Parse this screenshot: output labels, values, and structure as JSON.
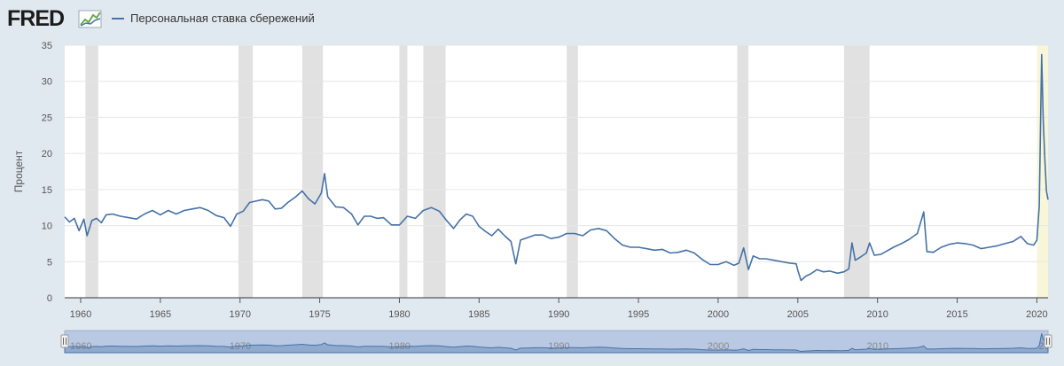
{
  "header": {
    "logo": "FRED",
    "logo_icon": "fred-chart-logo-icon",
    "legend_label": "Персональная ставка сбережений"
  },
  "colors": {
    "background": "#e1e9f0",
    "plot_bg": "#ffffff",
    "series": "#4572a7",
    "recession": "#e1e1e1",
    "highlight": "#f8f6d8",
    "navigator": "#b9c8e3"
  },
  "navigator": {
    "labels": [
      "1960",
      "1970",
      "1980",
      "1990",
      "2000",
      "2010",
      "20"
    ]
  },
  "chart_data": {
    "type": "line",
    "title": "",
    "ylabel": "Процент",
    "xlabel": "",
    "xlim": [
      1959.0,
      2020.7
    ],
    "ylim": [
      0,
      35
    ],
    "yticks": [
      0,
      5,
      10,
      15,
      20,
      25,
      30,
      35
    ],
    "xticks": [
      "1960",
      "1965",
      "1970",
      "1975",
      "1980",
      "1985",
      "1990",
      "1995",
      "2000",
      "2005",
      "2010",
      "2015",
      "2020"
    ],
    "grid": true,
    "legend_position": "top-left",
    "recessions": [
      [
        1960.3,
        1961.1
      ],
      [
        1969.9,
        1970.8
      ],
      [
        1973.9,
        1975.2
      ],
      [
        1980.0,
        1980.5
      ],
      [
        1981.5,
        1982.9
      ],
      [
        1990.5,
        1991.2
      ],
      [
        2001.2,
        2001.9
      ],
      [
        2007.9,
        2009.5
      ]
    ],
    "highlight": [
      2020.0,
      2020.7
    ],
    "series": [
      {
        "name": "Персональная ставка сбережений",
        "points": [
          [
            1959.0,
            11.2
          ],
          [
            1959.3,
            10.5
          ],
          [
            1959.6,
            11.0
          ],
          [
            1959.9,
            9.3
          ],
          [
            1960.2,
            10.9
          ],
          [
            1960.4,
            8.6
          ],
          [
            1960.7,
            10.7
          ],
          [
            1961.0,
            11.0
          ],
          [
            1961.3,
            10.4
          ],
          [
            1961.6,
            11.5
          ],
          [
            1962.0,
            11.6
          ],
          [
            1962.5,
            11.3
          ],
          [
            1963.0,
            11.1
          ],
          [
            1963.5,
            10.9
          ],
          [
            1964.0,
            11.6
          ],
          [
            1964.5,
            12.1
          ],
          [
            1965.0,
            11.5
          ],
          [
            1965.5,
            12.1
          ],
          [
            1966.0,
            11.6
          ],
          [
            1966.5,
            12.1
          ],
          [
            1967.0,
            12.3
          ],
          [
            1967.5,
            12.5
          ],
          [
            1968.0,
            12.1
          ],
          [
            1968.5,
            11.4
          ],
          [
            1969.0,
            11.1
          ],
          [
            1969.4,
            9.9
          ],
          [
            1969.8,
            11.6
          ],
          [
            1970.2,
            12.0
          ],
          [
            1970.6,
            13.2
          ],
          [
            1971.0,
            13.4
          ],
          [
            1971.4,
            13.6
          ],
          [
            1971.8,
            13.4
          ],
          [
            1972.2,
            12.3
          ],
          [
            1972.6,
            12.4
          ],
          [
            1973.0,
            13.2
          ],
          [
            1973.5,
            14.0
          ],
          [
            1973.9,
            14.8
          ],
          [
            1974.3,
            13.7
          ],
          [
            1974.7,
            13.0
          ],
          [
            1975.1,
            14.5
          ],
          [
            1975.3,
            17.2
          ],
          [
            1975.5,
            14.0
          ],
          [
            1976.0,
            12.6
          ],
          [
            1976.5,
            12.5
          ],
          [
            1977.0,
            11.6
          ],
          [
            1977.4,
            10.1
          ],
          [
            1977.8,
            11.3
          ],
          [
            1978.2,
            11.3
          ],
          [
            1978.6,
            11.0
          ],
          [
            1979.0,
            11.1
          ],
          [
            1979.5,
            10.1
          ],
          [
            1980.0,
            10.1
          ],
          [
            1980.5,
            11.3
          ],
          [
            1981.0,
            11.0
          ],
          [
            1981.5,
            12.1
          ],
          [
            1982.0,
            12.5
          ],
          [
            1982.5,
            12.0
          ],
          [
            1983.0,
            10.6
          ],
          [
            1983.4,
            9.6
          ],
          [
            1983.8,
            10.8
          ],
          [
            1984.2,
            11.6
          ],
          [
            1984.6,
            11.3
          ],
          [
            1985.0,
            9.9
          ],
          [
            1985.4,
            9.2
          ],
          [
            1985.8,
            8.6
          ],
          [
            1986.2,
            9.5
          ],
          [
            1986.6,
            8.6
          ],
          [
            1987.0,
            7.8
          ],
          [
            1987.3,
            4.7
          ],
          [
            1987.6,
            8.0
          ],
          [
            1988.0,
            8.3
          ],
          [
            1988.5,
            8.7
          ],
          [
            1989.0,
            8.7
          ],
          [
            1989.5,
            8.2
          ],
          [
            1990.0,
            8.4
          ],
          [
            1990.5,
            8.9
          ],
          [
            1991.0,
            8.9
          ],
          [
            1991.5,
            8.6
          ],
          [
            1992.0,
            9.4
          ],
          [
            1992.5,
            9.6
          ],
          [
            1993.0,
            9.3
          ],
          [
            1993.5,
            8.2
          ],
          [
            1994.0,
            7.3
          ],
          [
            1994.5,
            7.0
          ],
          [
            1995.0,
            7.0
          ],
          [
            1995.5,
            6.8
          ],
          [
            1996.0,
            6.6
          ],
          [
            1996.5,
            6.7
          ],
          [
            1997.0,
            6.2
          ],
          [
            1997.5,
            6.3
          ],
          [
            1998.0,
            6.6
          ],
          [
            1998.5,
            6.2
          ],
          [
            1999.0,
            5.3
          ],
          [
            1999.5,
            4.6
          ],
          [
            2000.0,
            4.6
          ],
          [
            2000.5,
            5.0
          ],
          [
            2001.0,
            4.5
          ],
          [
            2001.3,
            4.8
          ],
          [
            2001.6,
            6.9
          ],
          [
            2001.9,
            3.9
          ],
          [
            2002.2,
            5.8
          ],
          [
            2002.6,
            5.4
          ],
          [
            2003.0,
            5.4
          ],
          [
            2003.5,
            5.2
          ],
          [
            2004.0,
            5.0
          ],
          [
            2004.5,
            4.8
          ],
          [
            2004.9,
            4.7
          ],
          [
            2005.0,
            3.8
          ],
          [
            2005.2,
            2.4
          ],
          [
            2005.5,
            3.0
          ],
          [
            2005.8,
            3.3
          ],
          [
            2006.2,
            3.9
          ],
          [
            2006.6,
            3.6
          ],
          [
            2007.0,
            3.7
          ],
          [
            2007.5,
            3.4
          ],
          [
            2007.9,
            3.6
          ],
          [
            2008.2,
            4.0
          ],
          [
            2008.4,
            7.6
          ],
          [
            2008.6,
            5.2
          ],
          [
            2008.9,
            5.6
          ],
          [
            2009.3,
            6.2
          ],
          [
            2009.5,
            7.6
          ],
          [
            2009.8,
            5.9
          ],
          [
            2010.2,
            6.0
          ],
          [
            2010.6,
            6.5
          ],
          [
            2011.0,
            7.0
          ],
          [
            2011.5,
            7.5
          ],
          [
            2012.0,
            8.1
          ],
          [
            2012.5,
            8.9
          ],
          [
            2012.9,
            11.9
          ],
          [
            2013.1,
            6.4
          ],
          [
            2013.5,
            6.3
          ],
          [
            2014.0,
            7.0
          ],
          [
            2014.5,
            7.4
          ],
          [
            2015.0,
            7.6
          ],
          [
            2015.5,
            7.5
          ],
          [
            2016.0,
            7.3
          ],
          [
            2016.5,
            6.8
          ],
          [
            2017.0,
            7.0
          ],
          [
            2017.5,
            7.2
          ],
          [
            2018.0,
            7.5
          ],
          [
            2018.5,
            7.8
          ],
          [
            2019.0,
            8.5
          ],
          [
            2019.4,
            7.5
          ],
          [
            2019.8,
            7.3
          ],
          [
            2020.0,
            8.0
          ],
          [
            2020.15,
            12.7
          ],
          [
            2020.3,
            33.7
          ],
          [
            2020.4,
            24.5
          ],
          [
            2020.5,
            19.2
          ],
          [
            2020.6,
            14.8
          ],
          [
            2020.7,
            13.6
          ]
        ]
      }
    ]
  }
}
